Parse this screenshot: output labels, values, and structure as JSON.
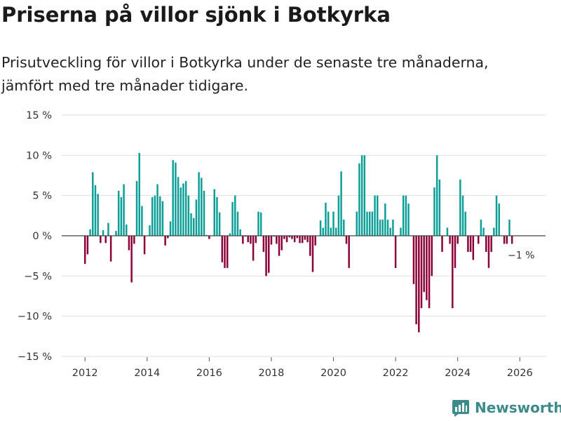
{
  "title": "Priserna på villor sjönk i Botkyrka",
  "subtitle": "Prisutveckling för villor i Botkyrka under de senaste tre månaderna, jämfört med tre månader tidigare.",
  "brand": "Newsworthy",
  "colors": {
    "positive": "#0e9e98",
    "negative": "#8b0038",
    "grid": "#dddddd",
    "zero": "#444444",
    "text": "#333333",
    "brand": "#3d8a8a"
  },
  "chart_data": {
    "type": "bar",
    "title": "Priserna på villor sjönk i Botkyrka",
    "xlabel": "",
    "ylabel": "",
    "ylim": [
      -15,
      15
    ],
    "xlim": [
      2011.25,
      2026.83
    ],
    "yticks": [
      15,
      10,
      5,
      0,
      -5,
      -10,
      -15
    ],
    "ytick_labels": [
      "15 %",
      "10 %",
      "5 %",
      "0 %",
      "−5 %",
      "−10 %",
      "−15 %"
    ],
    "xticks": [
      2012,
      2014,
      2016,
      2018,
      2020,
      2022,
      2024,
      2026
    ],
    "xtick_labels": [
      "2012",
      "2014",
      "2016",
      "2018",
      "2020",
      "2022",
      "2024",
      "2026"
    ],
    "start": [
      2012,
      1
    ],
    "values": [
      -3.5,
      -2.3,
      0.8,
      7.9,
      6.3,
      5.2,
      -0.9,
      0.7,
      -0.9,
      1.6,
      -3.2,
      0,
      0.6,
      5.6,
      4.8,
      6.4,
      1.4,
      -1.8,
      -5.8,
      -1.0,
      6.8,
      10.3,
      3.7,
      -2.3,
      0,
      1.3,
      4.8,
      5.0,
      6.4,
      4.9,
      4.3,
      -1.2,
      -0.3,
      1.8,
      9.4,
      9.1,
      7.3,
      6.0,
      6.5,
      6.8,
      5.0,
      2.8,
      2.2,
      4.5,
      7.9,
      7.2,
      5.6,
      0.1,
      -0.4,
      0,
      5.8,
      4.8,
      2.9,
      -3.3,
      -4.0,
      -4.0,
      0.3,
      4.2,
      5.0,
      3.0,
      0.8,
      -1.0,
      -0.1,
      -0.8,
      -1.0,
      -3.1,
      -0.9,
      3.0,
      2.9,
      -2.0,
      -5.0,
      -4.6,
      -1.1,
      -0.1,
      -1.0,
      -2.5,
      -1.8,
      -0.4,
      -0.8,
      -0.2,
      -0.4,
      -0.8,
      -0.3,
      -0.9,
      -0.9,
      -0.5,
      -0.8,
      -2.5,
      -4.5,
      -1.2,
      0,
      1.9,
      1.0,
      4.1,
      3.0,
      1.0,
      3.0,
      1.0,
      5.0,
      8.0,
      2.0,
      -1.0,
      -4.0,
      0,
      0,
      3.0,
      9.0,
      10.0,
      10.0,
      3.0,
      3.0,
      3.0,
      5.0,
      5.0,
      2.0,
      2.0,
      4.0,
      2.0,
      1.0,
      2.0,
      -4.0,
      0,
      1.0,
      5.0,
      5.0,
      4.0,
      0,
      -6.0,
      -11.0,
      -12.0,
      -9.0,
      -7.0,
      -8.0,
      -9.0,
      -5.0,
      6.0,
      10.0,
      7.0,
      -2.0,
      0,
      1.0,
      -1.0,
      -9.0,
      -4.0,
      -1.0,
      7.0,
      5.0,
      3.0,
      -2.0,
      -2.0,
      -3.0,
      0,
      -1.0,
      2.0,
      1.0,
      -2.0,
      -4.0,
      -2.0,
      1.0,
      5.0,
      4.0,
      0,
      -1.0,
      -1.0,
      2.0,
      -1.0
    ],
    "annotation": "−1 %"
  }
}
